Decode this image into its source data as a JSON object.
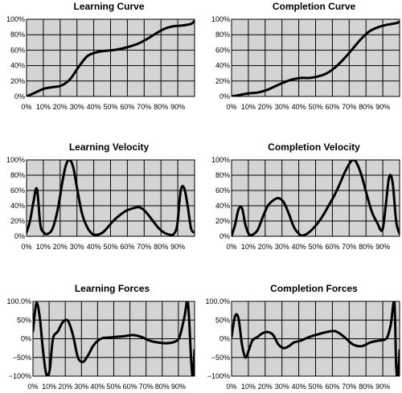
{
  "chart_data": [
    {
      "type": "line",
      "title": "Learning Curve",
      "x": [
        0,
        5,
        10,
        15,
        20,
        25,
        30,
        35,
        40,
        45,
        50,
        55,
        60,
        65,
        70,
        75,
        80,
        85,
        90,
        95,
        97
      ],
      "series": [
        {
          "values": [
            0,
            5,
            10,
            12,
            14,
            22,
            38,
            52,
            57,
            59,
            60,
            62,
            65,
            69,
            75,
            82,
            88,
            91,
            92,
            94,
            98
          ]
        }
      ],
      "x_tick_labels": [
        "0%",
        "10%",
        "20%",
        "30%",
        "40%",
        "50%",
        "60%",
        "70%",
        "80%",
        "90%"
      ],
      "y_tick_labels": [
        "0%",
        "20%",
        "40%",
        "60%",
        "80%",
        "100%"
      ],
      "xlim": [
        0,
        97
      ],
      "ylim": [
        0,
        100
      ],
      "grid": true
    },
    {
      "type": "line",
      "title": "Completion Curve",
      "x": [
        0,
        5,
        10,
        15,
        20,
        25,
        30,
        35,
        40,
        45,
        50,
        55,
        60,
        65,
        70,
        75,
        80,
        85,
        90,
        95,
        97
      ],
      "series": [
        {
          "values": [
            0,
            2,
            4,
            5,
            8,
            13,
            18,
            22,
            24,
            24,
            26,
            30,
            38,
            49,
            62,
            75,
            85,
            90,
            93,
            95,
            97
          ]
        }
      ],
      "x_tick_labels": [
        "0%",
        "10%",
        "20%",
        "30%",
        "40%",
        "50%",
        "60%",
        "70%",
        "80%",
        "90%"
      ],
      "y_tick_labels": [
        "0%",
        "20%",
        "40%",
        "60%",
        "80%",
        "100%"
      ],
      "xlim": [
        0,
        97
      ],
      "ylim": [
        0,
        100
      ],
      "grid": true
    },
    {
      "type": "line",
      "title": "Learning Velocity",
      "x": [
        0,
        2,
        4,
        6,
        8,
        10,
        12,
        15,
        18,
        21,
        23,
        25,
        27,
        29,
        32,
        35,
        38,
        41,
        44,
        47,
        50,
        54,
        58,
        62,
        65,
        68,
        71,
        74,
        77,
        80,
        83,
        85,
        87,
        89,
        91,
        93,
        95,
        97
      ],
      "series": [
        {
          "values": [
            5,
            20,
            45,
            62,
            15,
            5,
            3,
            10,
            35,
            75,
            95,
            100,
            90,
            65,
            30,
            12,
            3,
            2,
            5,
            12,
            20,
            28,
            34,
            37,
            38,
            34,
            26,
            17,
            9,
            4,
            2,
            3,
            15,
            60,
            63,
            40,
            10,
            5
          ]
        }
      ],
      "x_tick_labels": [
        "0%",
        "10%",
        "20%",
        "30%",
        "40%",
        "50%",
        "60%",
        "70%",
        "80%",
        "90%"
      ],
      "y_tick_labels": [
        "0%",
        "20%",
        "40%",
        "60%",
        "80%",
        "100%"
      ],
      "xlim": [
        0,
        97
      ],
      "ylim": [
        0,
        100
      ],
      "grid": true
    },
    {
      "type": "line",
      "title": "Completion Velocity",
      "x": [
        0,
        2,
        4,
        6,
        8,
        10,
        12,
        15,
        18,
        21,
        24,
        27,
        30,
        33,
        36,
        39,
        41,
        44,
        47,
        50,
        53,
        56,
        59,
        62,
        65,
        68,
        70,
        72,
        75,
        78,
        81,
        84,
        87,
        89,
        91,
        93,
        95,
        97
      ],
      "series": [
        {
          "values": [
            0,
            15,
            35,
            37,
            15,
            3,
            2,
            8,
            25,
            40,
            47,
            50,
            45,
            30,
            12,
            3,
            1,
            4,
            10,
            18,
            28,
            40,
            52,
            66,
            82,
            95,
            100,
            97,
            80,
            55,
            32,
            18,
            8,
            40,
            78,
            70,
            20,
            3
          ]
        }
      ],
      "x_tick_labels": [
        "0%",
        "10%",
        "20%",
        "30%",
        "40%",
        "50%",
        "60%",
        "70%",
        "80%",
        "90%"
      ],
      "y_tick_labels": [
        "0%",
        "20%",
        "40%",
        "60%",
        "80%",
        "100%"
      ],
      "xlim": [
        0,
        97
      ],
      "ylim": [
        0,
        100
      ],
      "grid": true
    },
    {
      "type": "line",
      "title": "Learning Forces",
      "x": [
        0,
        2,
        4,
        6,
        8,
        10,
        12,
        15,
        18,
        21,
        24,
        27,
        30,
        33,
        36,
        39,
        42,
        45,
        50,
        55,
        60,
        65,
        70,
        75,
        80,
        85,
        88,
        91,
        93,
        95,
        96,
        97
      ],
      "series": [
        {
          "values": [
            20,
            95,
            60,
            -30,
            -95,
            -85,
            0,
            20,
            45,
            48,
            10,
            -50,
            -62,
            -45,
            -20,
            -5,
            2,
            3,
            5,
            7,
            10,
            5,
            -5,
            -10,
            -12,
            -8,
            5,
            60,
            97,
            -60,
            -100,
            -30
          ]
        }
      ],
      "x_tick_labels": [
        "0%",
        "10%",
        "20%",
        "30%",
        "40%",
        "50%",
        "60%",
        "70%",
        "80%",
        "90%"
      ],
      "y_tick_labels": [
        "−100%",
        "−50%",
        "0%",
        "50%",
        "100.0%"
      ],
      "xlim": [
        0,
        97
      ],
      "ylim": [
        -100,
        100
      ],
      "grid": true
    },
    {
      "type": "line",
      "title": "Completion Forces",
      "x": [
        0,
        2,
        4,
        6,
        8,
        10,
        12,
        15,
        18,
        21,
        24,
        27,
        30,
        33,
        36,
        40,
        45,
        50,
        55,
        60,
        65,
        70,
        75,
        80,
        85,
        88,
        90,
        92,
        94,
        95,
        96,
        97
      ],
      "series": [
        {
          "values": [
            5,
            60,
            55,
            -15,
            -50,
            -30,
            -5,
            5,
            15,
            18,
            10,
            -15,
            -25,
            -20,
            -10,
            -5,
            5,
            12,
            18,
            20,
            5,
            -15,
            -20,
            -10,
            -5,
            -3,
            5,
            40,
            97,
            -70,
            -100,
            -30
          ]
        }
      ],
      "x_tick_labels": [
        "0%",
        "10%",
        "20%",
        "30%",
        "40%",
        "50%",
        "60%",
        "70%",
        "80%",
        "90%"
      ],
      "y_tick_labels": [
        "−100%",
        "−50%",
        "0%",
        "50%",
        "100.0%"
      ],
      "xlim": [
        0,
        97
      ],
      "ylim": [
        -100,
        100
      ],
      "grid": true
    }
  ]
}
